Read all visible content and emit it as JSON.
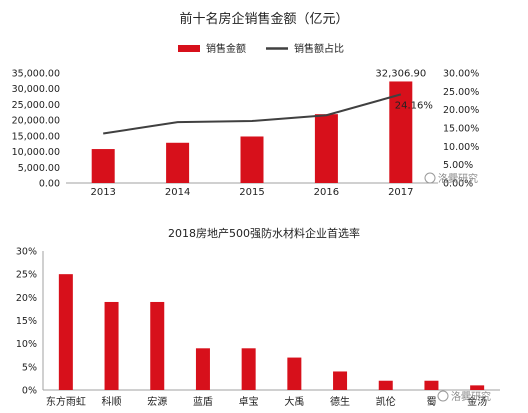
{
  "chart_data": [
    {
      "type": "bar",
      "title": "前十名房企销售金额（亿元）",
      "categories": [
        "2013",
        "2014",
        "2015",
        "2016",
        "2017"
      ],
      "series": [
        {
          "name": "销售金额",
          "type": "bar",
          "axis": "left",
          "color": "#d7101b",
          "values": [
            10800,
            12800,
            14800,
            21900,
            32306.9
          ]
        },
        {
          "name": "销售额占比",
          "type": "line",
          "axis": "right",
          "color": "#404040",
          "values": [
            13.5,
            16.6,
            16.9,
            18.5,
            24.16
          ]
        }
      ],
      "y_left": {
        "ylim": [
          0,
          35000
        ],
        "ticks": [
          "0.00",
          "5,000.00",
          "10,000.00",
          "15,000.00",
          "20,000.00",
          "25,000.00",
          "30,000.00",
          "35,000.00"
        ]
      },
      "y_right": {
        "ylim": [
          0,
          30
        ],
        "ticks": [
          "0.00%",
          "5.00%",
          "10.00%",
          "15.00%",
          "20.00%",
          "25.00%",
          "30.00%"
        ]
      },
      "data_labels": {
        "bar_last": "32,306.90",
        "line_last": "24.16%"
      },
      "legend": {
        "position": "top-center"
      },
      "grid": false
    },
    {
      "type": "bar",
      "title": "2018房地产500强防水材料企业首选率",
      "categories": [
        "东方雨虹",
        "科顺",
        "宏源",
        "蓝盾",
        "卓宝",
        "大禹",
        "德生",
        "凯伦",
        "蜀",
        "金汤"
      ],
      "series": [
        {
          "name": "首选率",
          "color": "#d7101b",
          "values": [
            25,
            19,
            19,
            9,
            9,
            7,
            4,
            2,
            2,
            1
          ]
        }
      ],
      "ylim": [
        0,
        30
      ],
      "ticks": [
        "0%",
        "5%",
        "10%",
        "15%",
        "20%",
        "25%",
        "30%"
      ],
      "grid": false
    }
  ],
  "watermarks": [
    "洛爨研究",
    "洛爨研究"
  ],
  "watermark_icon": "weibo-icon"
}
